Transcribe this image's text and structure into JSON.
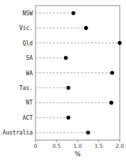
{
  "chart_data": {
    "type": "dot",
    "orientation": "horizontal",
    "categories": [
      "NSW",
      "Vic.",
      "Qld",
      "SA",
      "WA",
      "Tas.",
      "NT",
      "ACT",
      "Australia"
    ],
    "values": [
      0.9,
      1.2,
      2.0,
      0.72,
      1.82,
      0.78,
      1.8,
      0.78,
      1.25
    ],
    "xlim": [
      0,
      2.0
    ],
    "xticks": [
      0,
      0.5,
      {
        "value": 1.0,
        "label": "1.0"
      },
      1.5,
      {
        "value": 2.0,
        "label": "2.0"
      }
    ],
    "xlabel": "%",
    "marker": "circle",
    "color": "black",
    "line_style": "dashed",
    "grid": false
  }
}
